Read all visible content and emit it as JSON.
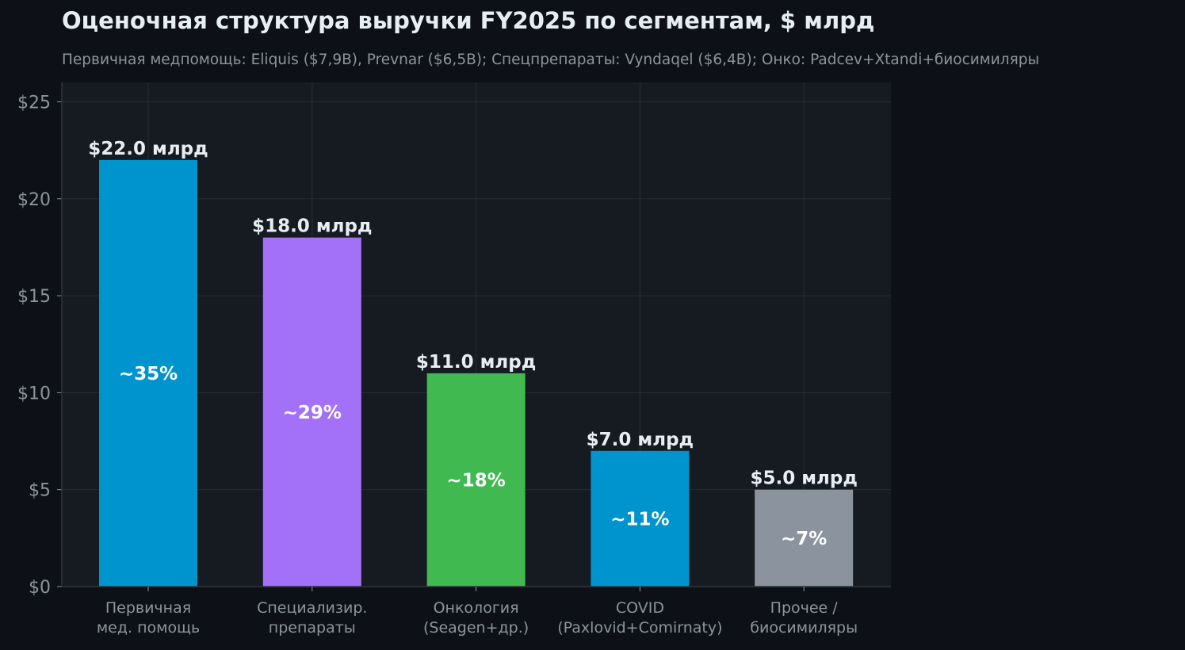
{
  "chart_data": {
    "type": "bar",
    "title": "Оценочная структура выручки FY2025 по сегментам, $ млрд",
    "subtitle": "Первичная медпомощь: Eliquis ($7,9B), Prevnar ($6,5B); Спецпрепараты: Vyndaqel ($6,4B); Онко: Padcev+Xtandi+биосимиляры",
    "xlabel": "",
    "ylabel": "",
    "categories": [
      [
        "Первичная",
        "мед. помощь"
      ],
      [
        "Специализир.",
        "препараты"
      ],
      [
        "Онкология",
        "(Seagen+др.)"
      ],
      [
        "COVID",
        "(Paxlovid+Comirnaty)"
      ],
      [
        "Прочее /",
        "биосимиляры"
      ]
    ],
    "values": [
      22.0,
      18.0,
      11.0,
      7.0,
      5.0
    ],
    "value_labels": [
      "$22.0 млрд",
      "$18.0 млрд",
      "$11.0 млрд",
      "$7.0 млрд",
      "$5.0 млрд"
    ],
    "share_labels": [
      "~35%",
      "~29%",
      "~18%",
      "~11%",
      "~7%"
    ],
    "colors": [
      "#0094cf",
      "#a371f7",
      "#3fb950",
      "#0094cf",
      "#8b949e"
    ],
    "ylim": [
      0,
      26
    ],
    "yticks": [
      0,
      5,
      10,
      15,
      20,
      25
    ],
    "ytick_labels": [
      "$0",
      "$5",
      "$10",
      "$15",
      "$20",
      "$25"
    ],
    "grid": true,
    "background": "#161b22",
    "page_background": "#0d1117",
    "grid_color": "#262c36"
  }
}
